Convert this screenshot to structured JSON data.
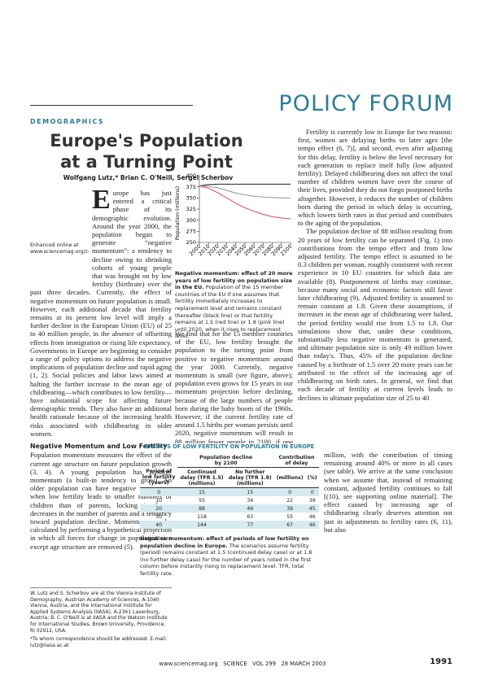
{
  "header": {
    "section": "DEMOGRAPHICS",
    "forum": "POLICY FORUM"
  },
  "article": {
    "title": "Europe's Population at a Turning Point",
    "authors": "Wolfgang Lutz,* Brian C. O'Neill, Sergei Scherbov",
    "intro": "Europe has just entered a critical phase of its demographic evolution. Around the year 2000, the population began to generate “negative momentum”: a tendency to decline owing to shrinking cohorts of young people that was brought on by low fertility (birthrate) over the past three decades. Currently, the effect of negative momentum on future population is small. However, each additional decade that fertility remains at its present low level will imply a further decline in the European Union (EU) of 25 to 40 million people, in the absence of offsetting effects from immigration or rising life expectancy. Governments in Europe are beginning to consider a range of policy options to address the negative implications of population decline and rapid aging (1, 2). Social policies and labor laws aimed at halting the further increase in the mean age of childbearing—which contributes to low fertility—have substantial scope for affecting future demographic trends. They also have an additional health rationale because of the increasing health risks associated with childbearing in older women.",
    "online_note": "Enhanced online at www.sciencemag.org/cgi/content/full/299/5615/1991",
    "heading": "Negative Momentum and Low Fertility",
    "momentum": "Population momentum measures the effect of the current age structure on future population growth (3, 4). A young population has positive momentum (a built-in tendency to grow). An older population can have negative momentum when low fertility leads to smaller numbers of children than of parents, locking in future decreases in the number of parents and a tendency toward population decline. Momentum can be calculated by performing a hypothetical projection in which all forces for change in population size except age structure are removed (5).",
    "affiliations": "W. Lutz and S. Scherbov are at the Vienna Institute of Demography, Austrian Academy of Sciences, A-1040 Vienna, Austria, and the International Institute for Applied Systems Analysis (IIASA), A-2361 Laxenburg, Austria; B. C. O'Neill is at IIASA and the Watson Institute for International Studies, Brown University, Providence, RI 02912, USA.",
    "correspondence": "*To whom correspondence should be addressed. E-mail: lutz@iiasa.ac.at",
    "figure_caption": {
      "bold": "Negative momentum: effect of 20 more years of low fertility on population size in the EU.",
      "text": " Population of the 15 member countries of the EU if one assumes that fertility immediately increases to replacement level and remains constant thereafter (black line) or that fertility remains at 1.5 (red line) or 1.8 (pink line) until 2020, when it rises to replacement level."
    },
    "middle": "We find that for the 15 member countries of the EU, low fertility brought the population to the turning point from positive to negative momentum around the year 2000. Currently, negative momentum is small (see figure, above); population even grows for 15 years in our momentum projection before declining, because of the large numbers of people born during the baby boom of the 1960s. However, if the current fertility rate of around 1.5 births per woman persists until 2020, negative momentum will result in 88 million fewer people in 2100, if one assumes constant mortality and no net migration.",
    "right_1": "Fertility is currently low in Europe for two reasons: first, women are delaying births to later ages [the tempo effect (6, 7)], and second, even after adjusting for this delay, fertility is below the level necessary for each generation to replace itself fully (low adjusted fertility). Delayed childbearing does not affect the total number of children women have over the course of their lives, provided they do not forgo postponed births altogether. However, it reduces the number of children born during the period in which delay is occurring, which lowers birth rates in that period and contributes to the aging of the population.",
    "right_2": "The population decline of 88 million resulting from 20 years of low fertility can be separated (Fig. 1) into contributions from the tempo effect and from low adjusted fertility. The tempo effect is assumed to be 0.3 children per woman, roughly consistent with recent experience in 10 EU countries for which data are available (8). Postponement of births may continue, because many social and economic factors still favor later childbearing (9). Adjusted fertility is assumed to remain constant at 1.8. Given these assumptions, if increases in the mean age of childbearing were halted, the period fertility would rise from 1.5 to 1.8. Our simulations show that, under these conditions, substantially less negative momentum is generated, and ultimate population size is only 49 million lower than today's. Thus, 45% of the population decline caused by a birthrate of 1.5 over 20 more years can be attributed to the effect of the increasing age of childbearing on birth rates. In general, we find that each decade of fertility at current levels leads to declines in ultimate population size of 25 to 40",
    "right_3": "million, with the contribution of timing remaining around 40% or more in all cases (see table). We arrive at the same conclusion when we assume that, instead of remaining constant, adjusted fertility continues to fall [(10), see supporting online material]. The effect caused by increasing age of childbearing clearly deserves attention not just in adjustments to fertility rates (6, 11), but also"
  },
  "table": {
    "title": "EFFECTS OF LOW FERTILITY ON POPULATION IN EUROPE",
    "group_headers": [
      "Population decline\nby 2100",
      "Contribution\nof delay"
    ],
    "columns": [
      "Period of\nlow fertility\n(years)",
      "Continued\ndelay (TFR 1.5)\n(millions)",
      "No further\ndelay (TFR 1.8)\n(millions)",
      "(millions)",
      "(%)"
    ],
    "rows": [
      [
        0,
        15,
        15,
        0,
        0
      ],
      [
        10,
        55,
        34,
        22,
        39
      ],
      [
        20,
        88,
        49,
        39,
        45
      ],
      [
        30,
        118,
        63,
        55,
        46
      ],
      [
        40,
        144,
        77,
        67,
        46
      ]
    ],
    "caption": {
      "bold": "Negative momentum: effect of periods of low fertility on population decline in Europe.",
      "text": " The scenarios assume fertility (period) remains constant at 1.5 (continued delay case) or at 1.8 (no further delay case) for the number of years noted in the first column before instantly rising to replacement level. TFR, total fertility rate."
    }
  },
  "footer": {
    "journal": "www.sciencemag.org   SCIENCE   VOL 299   28 MARCH 2003",
    "page": "1991"
  },
  "chart_data": {
    "type": "line",
    "y_label": "Population (millions)",
    "x": [
      2000,
      2010,
      2020,
      2030,
      2040,
      2050,
      2060,
      2070,
      2080,
      2090,
      2100
    ],
    "xlim": [
      2000,
      2100
    ],
    "xticks": [
      2000,
      2010,
      2020,
      2030,
      2040,
      2050,
      2060,
      2070,
      2080,
      2090,
      2100
    ],
    "ylim": [
      250,
      400
    ],
    "yticks": [
      250,
      275,
      300,
      325,
      350,
      375,
      400
    ],
    "series": [
      {
        "color": "#222222",
        "values": [
          377,
          380,
          381,
          381,
          381,
          381,
          381,
          381,
          381,
          381,
          381
        ]
      },
      {
        "color": "#9a9a9a",
        "values": [
          377,
          376,
          373,
          367,
          361,
          357,
          354,
          352,
          351,
          350,
          350
        ]
      },
      {
        "color": "#e0587a",
        "values": [
          377,
          372,
          362,
          350,
          338,
          328,
          320,
          313,
          308,
          305,
          303
        ]
      }
    ]
  }
}
